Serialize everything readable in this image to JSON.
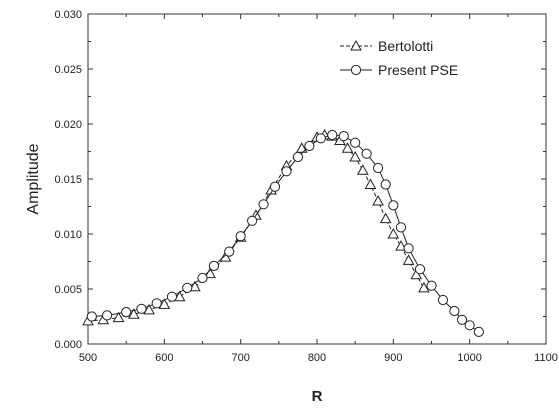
{
  "chart_data": {
    "type": "line",
    "title": "",
    "xlabel": "R",
    "ylabel": "Amplitude",
    "xlim": [
      500,
      1100
    ],
    "ylim": [
      0.0,
      0.03
    ],
    "x_ticks": [
      "500",
      "600",
      "700",
      "800",
      "900",
      "1000",
      "1100"
    ],
    "y_ticks": [
      "0.000",
      "0.005",
      "0.010",
      "0.015",
      "0.020",
      "0.025",
      "0.030"
    ],
    "grid": false,
    "legend_position": "top-right",
    "series": [
      {
        "name": "Bertolotti",
        "marker": "triangle",
        "line": "dashed",
        "points": [
          [
            500,
            0.0021
          ],
          [
            520,
            0.0022
          ],
          [
            540,
            0.0024
          ],
          [
            560,
            0.0027
          ],
          [
            580,
            0.0031
          ],
          [
            600,
            0.0036
          ],
          [
            620,
            0.0043
          ],
          [
            640,
            0.0052
          ],
          [
            660,
            0.0064
          ],
          [
            680,
            0.0079
          ],
          [
            700,
            0.0097
          ],
          [
            720,
            0.0117
          ],
          [
            740,
            0.014
          ],
          [
            760,
            0.0162
          ],
          [
            780,
            0.0178
          ],
          [
            800,
            0.0188
          ],
          [
            810,
            0.019
          ],
          [
            820,
            0.0189
          ],
          [
            830,
            0.0185
          ],
          [
            840,
            0.0178
          ],
          [
            850,
            0.017
          ],
          [
            860,
            0.0158
          ],
          [
            870,
            0.0145
          ],
          [
            880,
            0.013
          ],
          [
            890,
            0.0114
          ],
          [
            900,
            0.01
          ],
          [
            910,
            0.0089
          ],
          [
            920,
            0.0076
          ],
          [
            930,
            0.0063
          ],
          [
            940,
            0.0051
          ]
        ]
      },
      {
        "name": "Present PSE",
        "marker": "circle",
        "line": "solid",
        "points": [
          [
            505,
            0.0025
          ],
          [
            525,
            0.0026
          ],
          [
            550,
            0.0029
          ],
          [
            570,
            0.0032
          ],
          [
            590,
            0.0037
          ],
          [
            610,
            0.0043
          ],
          [
            630,
            0.0051
          ],
          [
            650,
            0.006
          ],
          [
            665,
            0.0071
          ],
          [
            685,
            0.0084
          ],
          [
            700,
            0.0098
          ],
          [
            715,
            0.0112
          ],
          [
            730,
            0.0127
          ],
          [
            745,
            0.0143
          ],
          [
            760,
            0.0157
          ],
          [
            775,
            0.017
          ],
          [
            790,
            0.018
          ],
          [
            805,
            0.0187
          ],
          [
            820,
            0.019
          ],
          [
            835,
            0.0189
          ],
          [
            850,
            0.0183
          ],
          [
            865,
            0.0173
          ],
          [
            880,
            0.016
          ],
          [
            890,
            0.0145
          ],
          [
            900,
            0.0126
          ],
          [
            910,
            0.0106
          ],
          [
            920,
            0.0087
          ],
          [
            935,
            0.0068
          ],
          [
            950,
            0.0053
          ],
          [
            965,
            0.004
          ],
          [
            980,
            0.003
          ],
          [
            990,
            0.0022
          ],
          [
            1000,
            0.0017
          ],
          [
            1012,
            0.0011
          ]
        ]
      }
    ]
  }
}
